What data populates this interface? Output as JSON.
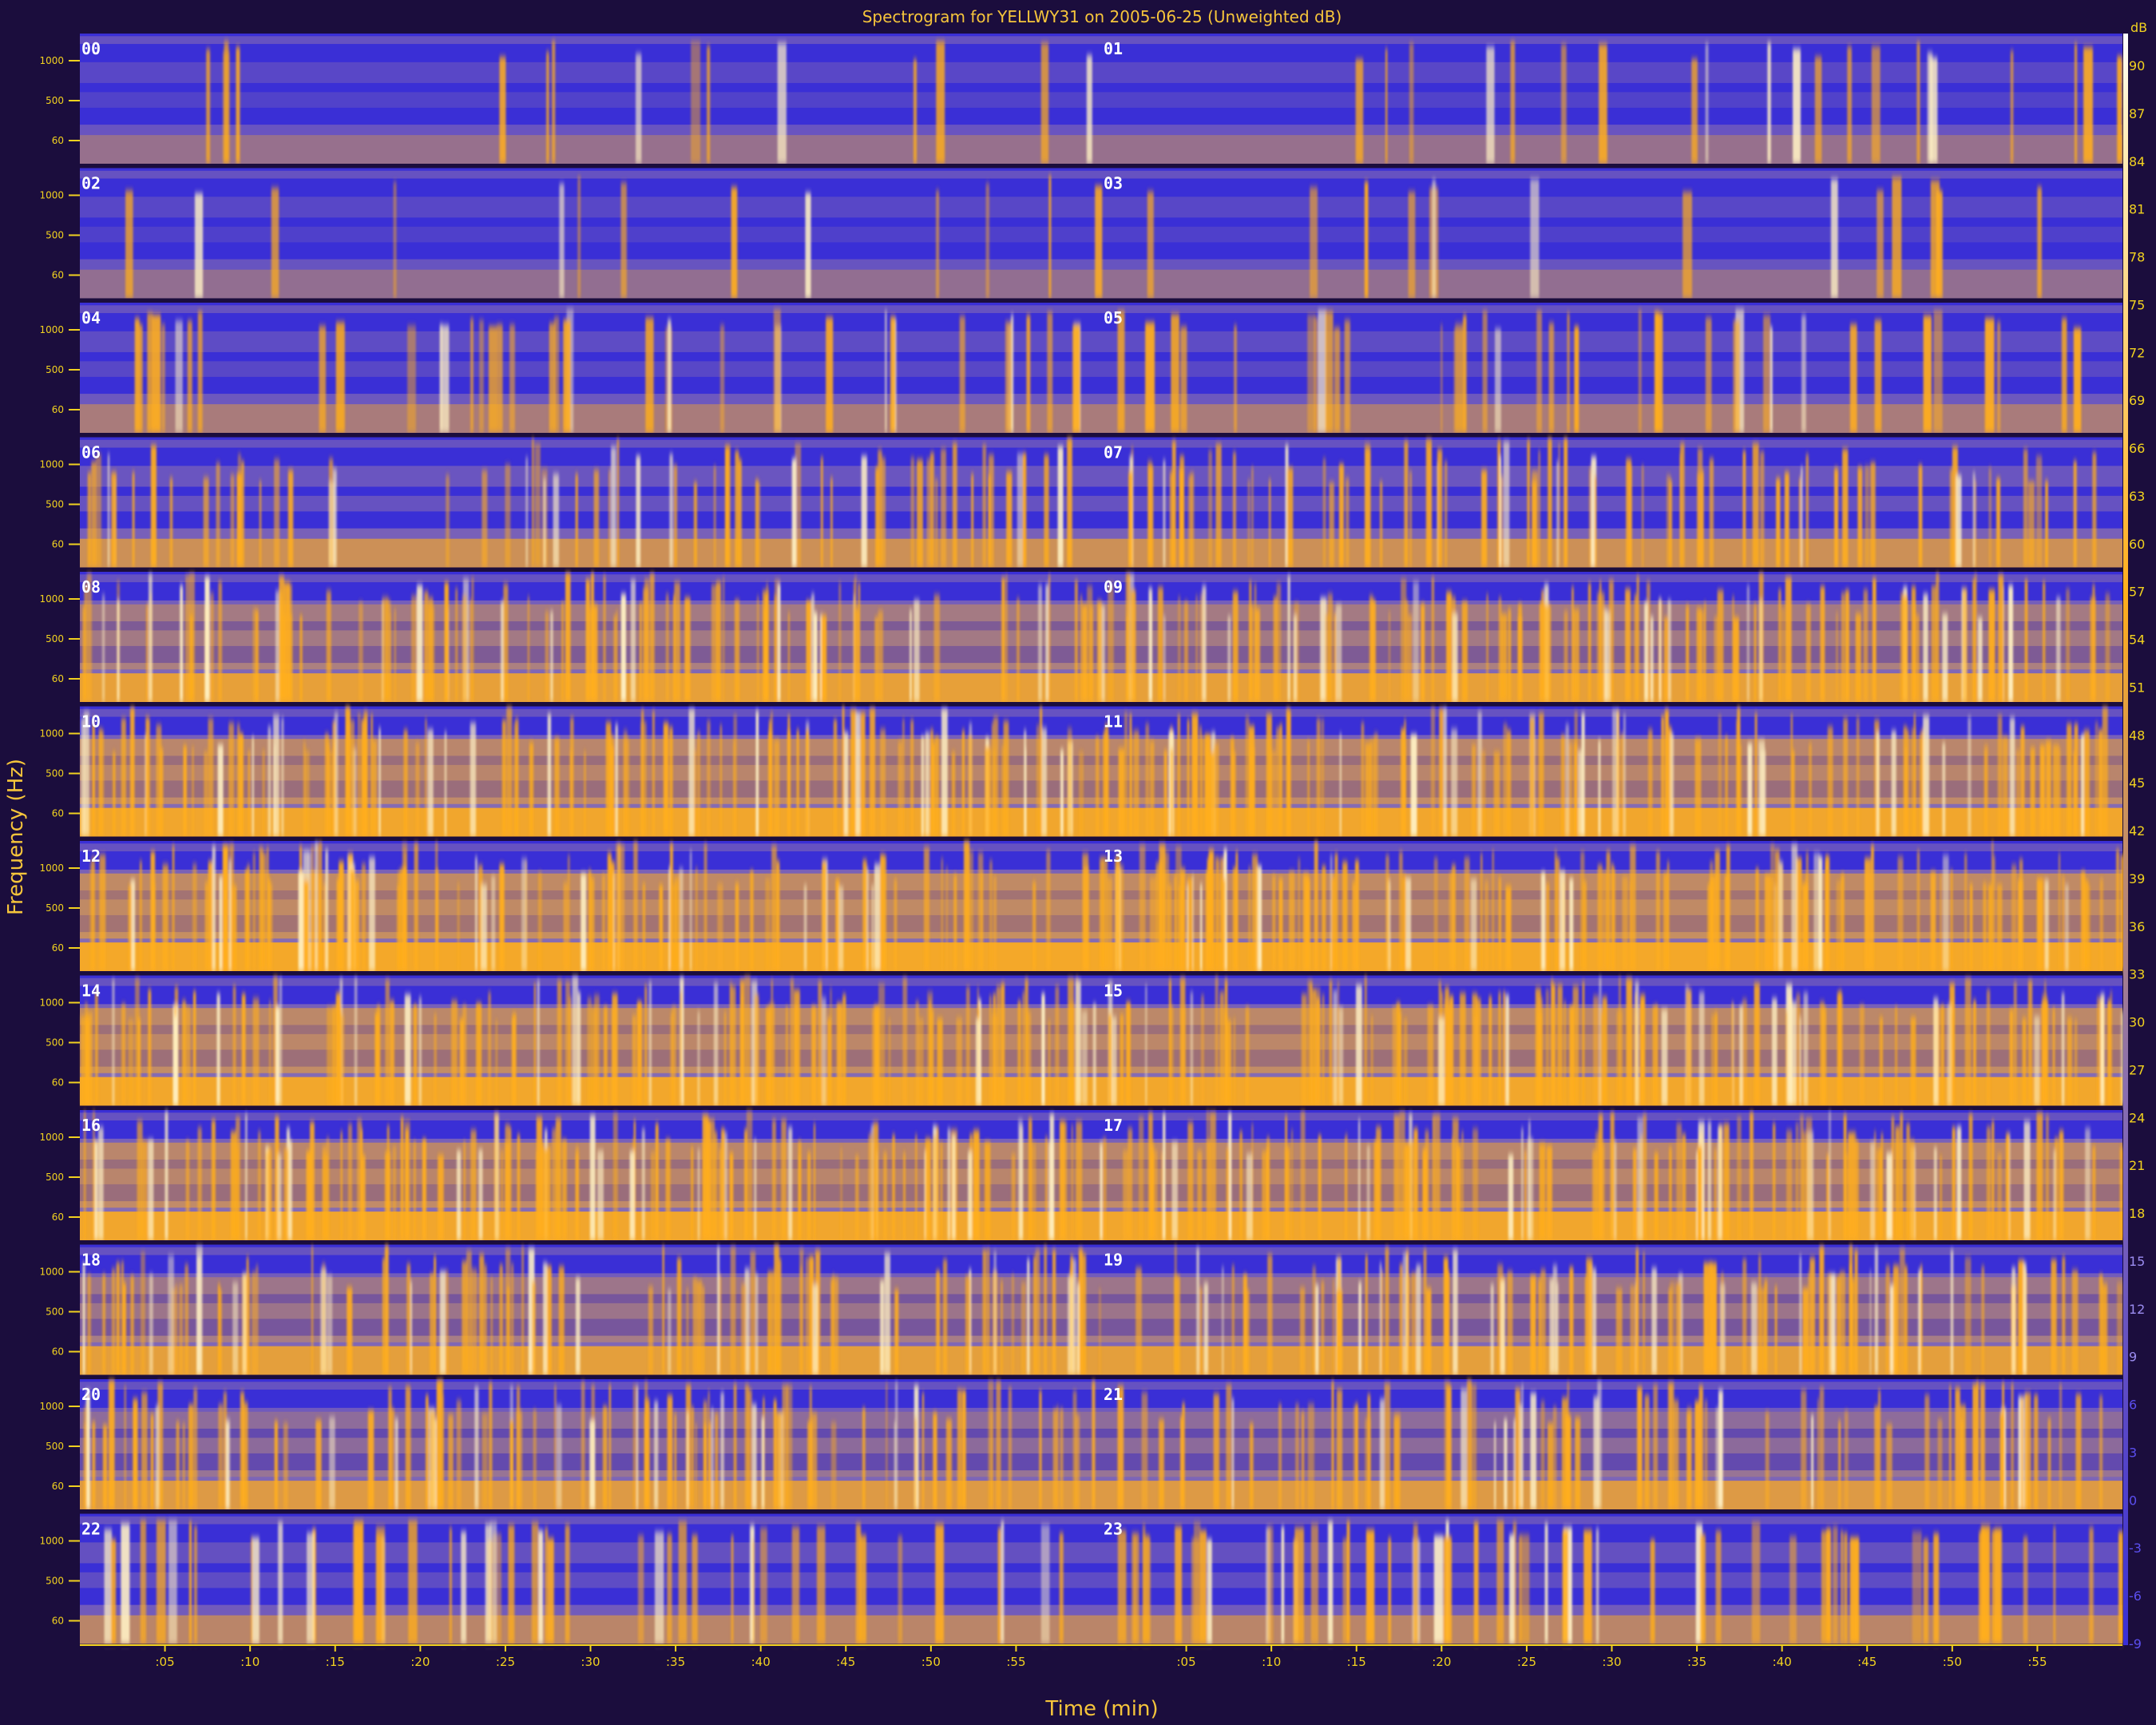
{
  "chart_data": {
    "type": "heatmap",
    "title": "Spectrogram for YELLWY31 on 2005-06-25 (Unweighted dB)",
    "xlabel": "Time (min)",
    "ylabel": "Frequency (Hz)",
    "colorbar_unit": "dB",
    "colorbar_ticks": [
      90,
      87,
      84,
      81,
      78,
      75,
      72,
      69,
      66,
      63,
      60,
      57,
      54,
      51,
      48,
      45,
      42,
      39,
      36,
      33,
      30,
      27,
      24,
      21,
      18,
      15,
      12,
      9,
      6,
      3,
      0,
      -3,
      -6,
      -9
    ],
    "colorbar_range": [
      -9,
      90
    ],
    "freq_ticks": [
      "1000",
      "500",
      "60"
    ],
    "time_ticks": [
      ":05",
      ":10",
      ":15",
      ":20",
      ":25",
      ":30",
      ":35",
      ":40",
      ":45",
      ":50",
      ":55"
    ],
    "rows": [
      {
        "left_hour": "00",
        "right_hour": "01",
        "activity": 0.08
      },
      {
        "left_hour": "02",
        "right_hour": "03",
        "activity": 0.05
      },
      {
        "left_hour": "04",
        "right_hour": "05",
        "activity": 0.22
      },
      {
        "left_hour": "06",
        "right_hour": "07",
        "activity": 0.5
      },
      {
        "left_hour": "08",
        "right_hour": "09",
        "activity": 0.75
      },
      {
        "left_hour": "10",
        "right_hour": "11",
        "activity": 0.85
      },
      {
        "left_hour": "12",
        "right_hour": "13",
        "activity": 0.88
      },
      {
        "left_hour": "14",
        "right_hour": "15",
        "activity": 0.86
      },
      {
        "left_hour": "16",
        "right_hour": "17",
        "activity": 0.85
      },
      {
        "left_hour": "18",
        "right_hour": "19",
        "activity": 0.72
      },
      {
        "left_hour": "20",
        "right_hour": "21",
        "activity": 0.65
      },
      {
        "left_hour": "22",
        "right_hour": "23",
        "activity": 0.35
      }
    ],
    "colors": {
      "background": "#1b0d3d",
      "low": "#3a2fd6",
      "mid": "#8a6fb0",
      "high": "#ffae1c",
      "peak": "#fff1c4",
      "label": "#f2d21f"
    }
  }
}
